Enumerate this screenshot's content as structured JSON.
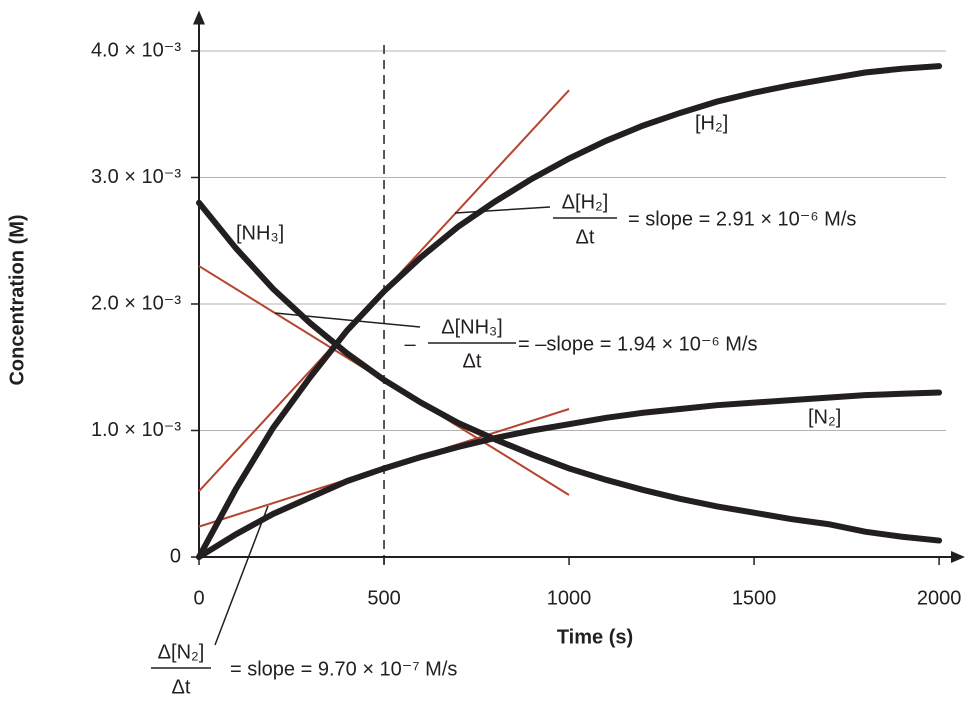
{
  "chart_data": {
    "type": "line",
    "x_label": "Time (s)",
    "y_label": "Concentration (M)",
    "x": [
      0,
      100,
      200,
      300,
      400,
      500,
      600,
      700,
      800,
      900,
      1000,
      1100,
      1200,
      1300,
      1400,
      1500,
      1600,
      1700,
      1800,
      1900,
      2000
    ],
    "series": [
      {
        "name": "[NH₃]",
        "color": "#231f20",
        "values": [
          0.0028,
          0.00244,
          0.00212,
          0.00185,
          0.00161,
          0.0014,
          0.00122,
          0.00106,
          0.00093,
          0.00081,
          0.0007,
          0.00061,
          0.00053,
          0.00046,
          0.0004,
          0.00035,
          0.0003,
          0.00026,
          0.0002,
          0.00016,
          0.00013
        ]
      },
      {
        "name": "[H₂]",
        "color": "#231f20",
        "values": [
          0,
          0.00054,
          0.00102,
          0.00142,
          0.00179,
          0.0021,
          0.00237,
          0.00261,
          0.00281,
          0.00299,
          0.00315,
          0.00329,
          0.00341,
          0.00351,
          0.0036,
          0.00367,
          0.00373,
          0.00378,
          0.00383,
          0.00386,
          0.00388
        ]
      },
      {
        "name": "[N₂]",
        "color": "#231f20",
        "values": [
          0,
          0.00018,
          0.00034,
          0.00047,
          0.0006,
          0.0007,
          0.00079,
          0.00087,
          0.00094,
          0.001,
          0.00105,
          0.0011,
          0.00114,
          0.00117,
          0.0012,
          0.00122,
          0.00124,
          0.00126,
          0.00128,
          0.00129,
          0.0013
        ]
      }
    ],
    "tangents": [
      {
        "x": [
          0,
          1000
        ],
        "values": [
          0.0023,
          0.00049
        ],
        "color": "#b5452f"
      },
      {
        "x": [
          0,
          1000
        ],
        "values": [
          0.00052,
          0.00369
        ],
        "color": "#b5452f"
      },
      {
        "x": [
          0,
          1000
        ],
        "values": [
          0.00024,
          0.00117
        ],
        "color": "#b5452f"
      }
    ],
    "vline": 500,
    "annotations": [
      {
        "numerator": "Δ[H₂]",
        "denominator": "Δt",
        "text": "= slope = 2.91 × 10⁻⁶ M/s"
      },
      {
        "prefix": "–",
        "numerator": "Δ[NH₃]",
        "denominator": "Δt",
        "text": "= –slope = 1.94 × 10⁻⁶ M/s"
      },
      {
        "numerator": "Δ[N₂]",
        "denominator": "Δt",
        "text": "= slope = 9.70 × 10⁻⁷ M/s"
      }
    ],
    "xlim": [
      0,
      2070
    ],
    "ylim": [
      0,
      0.00432
    ],
    "xticks": [
      0,
      500,
      1000,
      1500,
      2000
    ],
    "yticks": [
      0,
      {
        "value": 0.001,
        "label": "1.0 × 10⁻³"
      },
      {
        "value": 0.002,
        "label": "2.0 × 10⁻³"
      },
      {
        "value": 0.003,
        "label": "3.0 × 10⁻³"
      },
      {
        "value": 0.004,
        "label": "4.0 × 10⁻³"
      }
    ],
    "grid": true
  }
}
